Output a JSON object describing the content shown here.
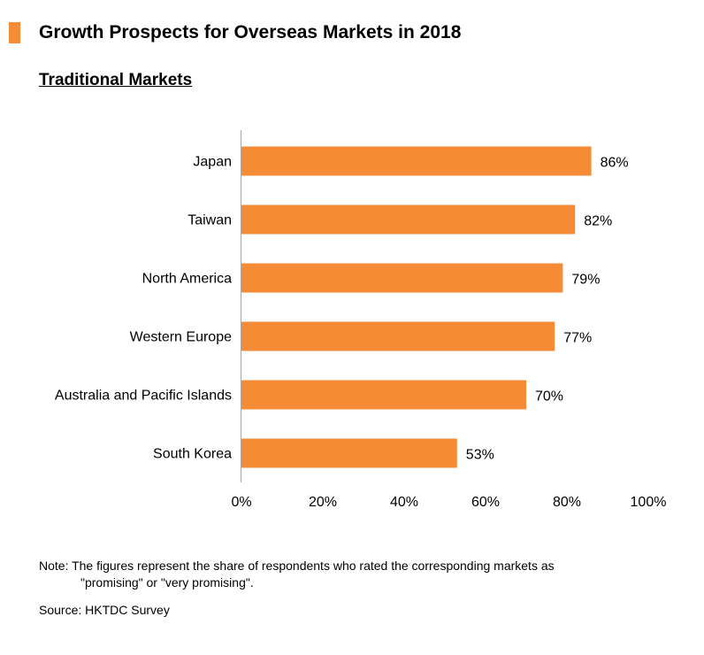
{
  "header": {
    "title": "Growth Prospects for Overseas Markets in 2018",
    "subtitle": "Traditional Markets"
  },
  "colors": {
    "bar": "#f58b35",
    "accent": "#f58b35",
    "axis": "#a6a6a6"
  },
  "chart_data": {
    "type": "bar",
    "orientation": "horizontal",
    "title": "Traditional Markets",
    "categories": [
      "Japan",
      "Taiwan",
      "North America",
      "Western Europe",
      "Australia and Pacific Islands",
      "South Korea"
    ],
    "values": [
      86,
      82,
      79,
      77,
      70,
      53
    ],
    "value_labels": [
      "86%",
      "82%",
      "79%",
      "77%",
      "70%",
      "53%"
    ],
    "xlabel": "",
    "ylabel": "",
    "xlim": [
      0,
      100
    ],
    "xticks": [
      0,
      20,
      40,
      60,
      80,
      100
    ],
    "xtick_labels": [
      "0%",
      "20%",
      "40%",
      "60%",
      "80%",
      "100%"
    ],
    "grid": false,
    "legend": "none"
  },
  "footer": {
    "note_line1": "Note: The figures represent the share of respondents who rated the corresponding markets as",
    "note_line2": "\"promising\" or \"very promising\".",
    "source": "Source: HKTDC Survey"
  }
}
